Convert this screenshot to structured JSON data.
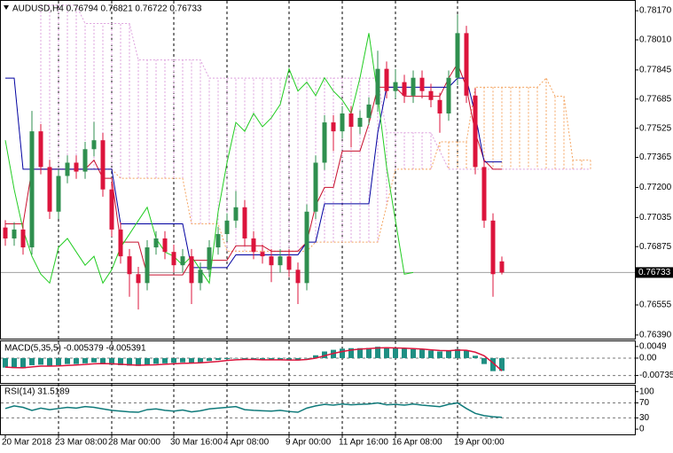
{
  "chart_data": [
    {
      "type": "candlestick",
      "title": "AUDUSD,H4  0.76794 0.76821 0.76722 0.76733",
      "categories": [
        "20 Mar 2018",
        null,
        null,
        null,
        null,
        null,
        "23 Mar 08:00",
        null,
        null,
        null,
        null,
        null,
        "28 Mar 00:00",
        null,
        null,
        null,
        null,
        null,
        null,
        "30 Mar 16:00",
        null,
        null,
        null,
        null,
        null,
        "4 Apr 08:00",
        null,
        null,
        null,
        null,
        null,
        null,
        "9 Apr 00:00",
        null,
        null,
        null,
        null,
        null,
        "11 Apr 16:00",
        null,
        null,
        null,
        null,
        null,
        "16 Apr 08:00",
        null,
        null,
        null,
        null,
        null,
        null,
        "19 Apr 00:00",
        null,
        null,
        null,
        null,
        null,
        null,
        null,
        null,
        null,
        null,
        null,
        null,
        null,
        null,
        null
      ],
      "open": [
        0.7698,
        0.7692,
        0.76969,
        0.76871,
        0.77508,
        0.77312,
        0.77067,
        0.77263,
        0.77336,
        0.77287,
        0.7741,
        0.77459,
        0.77189,
        0.76969,
        0.76822,
        0.76724,
        0.76675,
        0.76871,
        0.7692,
        0.76846,
        0.76773,
        0.76822,
        0.76675,
        0.76748,
        0.76871,
        0.76944,
        0.77018,
        0.77091,
        0.7692,
        0.76846,
        0.76822,
        0.76773,
        0.76822,
        0.76748,
        0.76675,
        0.77067,
        0.77336,
        0.77557,
        0.77508,
        0.77606,
        0.77533,
        0.77582,
        0.77655,
        0.77851,
        0.77729,
        0.77778,
        0.77704,
        0.77802,
        0.77729,
        0.7768,
        0.77606,
        0.77802,
        0.78047,
        0.77704,
        0.77312,
        0.77018,
        0.76794,
        null,
        null,
        null,
        null,
        null,
        null,
        null,
        null,
        null,
        null
      ],
      "high": [
        0.7702,
        0.77009,
        0.77009,
        0.7762,
        0.77548,
        0.77352,
        0.77303,
        0.77376,
        0.77376,
        0.7745,
        0.7756,
        0.77499,
        0.77229,
        0.77009,
        0.76862,
        0.76764,
        0.76911,
        0.7696,
        0.7696,
        0.76886,
        0.76862,
        0.76862,
        0.76788,
        0.76911,
        0.76984,
        0.77058,
        0.7718,
        0.77131,
        0.7696,
        0.76886,
        0.76862,
        0.76862,
        0.76862,
        0.76788,
        0.77107,
        0.77376,
        0.77597,
        0.77597,
        0.77646,
        0.77646,
        0.77622,
        0.77695,
        0.7795,
        0.77891,
        0.7785,
        0.77818,
        0.77842,
        0.77842,
        0.77769,
        0.7772,
        0.77842,
        0.7815,
        0.78087,
        0.77744,
        0.77352,
        0.77058,
        0.76821,
        null,
        null,
        null,
        null,
        null,
        null,
        null,
        null,
        null,
        null
      ],
      "low": [
        0.7688,
        0.7688,
        0.76831,
        0.76831,
        0.77272,
        0.77027,
        0.77027,
        0.77223,
        0.77247,
        0.77247,
        0.7737,
        0.77149,
        0.76929,
        0.76782,
        0.766,
        0.7653,
        0.76635,
        0.76831,
        0.76806,
        0.76733,
        0.76733,
        0.7656,
        0.76635,
        0.76708,
        0.76831,
        0.76904,
        0.76978,
        0.7688,
        0.76806,
        0.76782,
        0.7668,
        0.76733,
        0.76708,
        0.7656,
        0.76635,
        0.77027,
        0.77296,
        0.774,
        0.77468,
        0.7742,
        0.77493,
        0.77542,
        0.77615,
        0.77689,
        0.77689,
        0.77664,
        0.77664,
        0.77689,
        0.7764,
        0.775,
        0.77566,
        0.77762,
        0.77664,
        0.77272,
        0.76978,
        0.766,
        0.76722,
        null,
        null,
        null,
        null,
        null,
        null,
        null,
        null,
        null,
        null
      ],
      "close": [
        0.7692,
        0.76969,
        0.76871,
        0.77508,
        0.77312,
        0.77067,
        0.77263,
        0.77336,
        0.77287,
        0.7741,
        0.77459,
        0.77189,
        0.76969,
        0.76822,
        0.76724,
        0.76675,
        0.76871,
        0.7692,
        0.76846,
        0.76773,
        0.76822,
        0.76675,
        0.76748,
        0.76871,
        0.76944,
        0.77018,
        0.77091,
        0.7692,
        0.76846,
        0.76822,
        0.76773,
        0.76822,
        0.76748,
        0.76675,
        0.77067,
        0.77336,
        0.77557,
        0.77508,
        0.77606,
        0.77533,
        0.77582,
        0.77655,
        0.77851,
        0.77729,
        0.77778,
        0.77704,
        0.77802,
        0.77729,
        0.7768,
        0.77606,
        0.77802,
        0.78047,
        0.77704,
        0.77312,
        0.77018,
        0.76724,
        0.76733,
        null,
        null,
        null,
        null,
        null,
        null,
        null,
        null,
        null,
        null
      ],
      "up_color": "#2f8f4f",
      "down_color": "#dc143c",
      "lines": [
        {
          "color": "#c8102e",
          "values": [
            0.77,
            0.77,
            0.77,
            0.773,
            0.773,
            0.773,
            0.773,
            0.773,
            0.773,
            0.773,
            0.7735,
            0.7725,
            0.7725,
            0.769,
            0.769,
            0.769,
            0.7672,
            0.7672,
            0.7672,
            0.7672,
            0.7672,
            0.768,
            0.768,
            0.768,
            0.768,
            0.768,
            0.7688,
            0.7688,
            0.7688,
            0.7688,
            0.7685,
            0.7685,
            0.7685,
            0.7685,
            0.769,
            0.771,
            0.772,
            0.772,
            0.774,
            0.774,
            0.774,
            0.7755,
            0.7775,
            0.7775,
            0.7775,
            0.777,
            0.777,
            0.777,
            0.777,
            0.777,
            0.778,
            0.7788,
            0.7775,
            0.775,
            0.7735,
            0.773,
            0.773,
            null,
            null,
            null,
            null,
            null,
            null,
            null,
            null,
            null,
            null
          ]
        },
        {
          "color": "#0000a0",
          "values": [
            0.778,
            0.778,
            0.773,
            0.773,
            0.773,
            0.773,
            0.773,
            0.773,
            0.773,
            0.773,
            0.773,
            0.773,
            0.773,
            0.77,
            0.77,
            0.77,
            0.77,
            0.77,
            0.77,
            0.77,
            0.77,
            0.7676,
            0.7676,
            0.7676,
            0.7676,
            0.7676,
            0.7683,
            0.7683,
            0.7683,
            0.7683,
            0.7683,
            0.7683,
            0.7683,
            0.7683,
            0.769,
            0.769,
            0.7711,
            0.7711,
            0.7711,
            0.7711,
            0.7711,
            0.7711,
            0.775,
            0.7775,
            0.7775,
            0.7775,
            0.7775,
            0.7775,
            0.7775,
            0.7775,
            0.7775,
            0.778,
            0.778,
            0.776,
            0.7734,
            0.7734,
            0.7734,
            null,
            null,
            null,
            null,
            null,
            null,
            null,
            null,
            null,
            null
          ]
        },
        {
          "color": "#22cc22",
          "values": [
            0.77459,
            0.77189,
            0.76969,
            0.76822,
            0.76724,
            0.76675,
            0.76871,
            0.7692,
            0.76846,
            0.76773,
            0.76822,
            0.76675,
            0.76748,
            0.76871,
            0.76944,
            0.77018,
            0.77091,
            0.7692,
            0.76846,
            0.76822,
            0.76773,
            0.76822,
            0.76748,
            0.76675,
            0.77067,
            0.77336,
            0.77557,
            0.77508,
            0.77606,
            0.77533,
            0.77582,
            0.77655,
            0.77851,
            0.77729,
            0.77778,
            0.77704,
            0.77802,
            0.77729,
            0.7768,
            0.77606,
            0.77802,
            0.78047,
            0.77704,
            0.77312,
            0.77018,
            0.76724,
            0.76733,
            null,
            null,
            null,
            null,
            null,
            null,
            null,
            null,
            null,
            null,
            null,
            null,
            null,
            null,
            null,
            null,
            null,
            null,
            null,
            null
          ]
        }
      ],
      "cloud": {
        "color_a": "#f4a460",
        "color_b": "#dda0dd",
        "span_a": [
          null,
          null,
          null,
          null,
          0.773,
          0.773,
          0.773,
          0.773,
          0.773,
          0.773,
          0.773,
          0.773,
          0.773,
          0.7725,
          0.7725,
          0.7725,
          0.7725,
          0.7725,
          0.7725,
          0.7725,
          0.7725,
          0.77,
          0.77,
          0.77,
          0.77,
          0.7685,
          0.7685,
          0.7685,
          0.7685,
          0.7685,
          0.7685,
          0.7685,
          0.7685,
          0.7685,
          0.7685,
          0.769,
          0.769,
          0.769,
          0.769,
          0.769,
          0.769,
          0.769,
          0.769,
          0.771,
          0.773,
          0.773,
          0.773,
          0.773,
          0.773,
          0.7745,
          0.7745,
          0.7745,
          0.7745,
          0.7775,
          0.7775,
          0.7775,
          0.7775,
          0.7775,
          0.7775,
          0.7775,
          0.7775,
          0.778,
          0.777,
          0.777,
          0.7735,
          0.7735,
          0.7735
        ],
        "span_b": [
          null,
          null,
          null,
          null,
          0.782,
          0.782,
          0.782,
          0.782,
          0.782,
          0.781,
          0.781,
          0.781,
          0.781,
          0.781,
          0.781,
          0.779,
          0.779,
          0.779,
          0.779,
          0.779,
          0.779,
          0.779,
          0.779,
          0.778,
          0.778,
          0.778,
          0.778,
          0.778,
          0.778,
          0.778,
          0.778,
          0.778,
          0.778,
          0.778,
          0.778,
          0.778,
          0.778,
          0.778,
          0.778,
          0.778,
          0.778,
          0.778,
          0.778,
          0.775,
          0.775,
          0.775,
          0.775,
          0.775,
          0.775,
          0.774,
          0.773,
          0.773,
          0.773,
          0.773,
          0.773,
          0.773,
          0.773,
          0.773,
          0.773,
          0.773,
          0.773,
          0.773,
          0.773,
          0.773,
          0.773,
          0.773,
          0.773
        ]
      },
      "last_price": 0.76733,
      "price_line_color": "#a0a0a0",
      "ylim": [
        0.7637,
        0.78224
      ],
      "yticks": [
        {
          "value": 0.7817,
          "label": "0.78170"
        },
        {
          "value": 0.7801,
          "label": "0.78010"
        },
        0.77845,
        0.77685,
        0.77525,
        0.77365,
        {
          "value": 0.772,
          "label": "0.77200"
        },
        0.77035,
        0.76875,
        0.76555,
        {
          "value": 0.7639,
          "label": "0.76390"
        }
      ]
    },
    {
      "type": "bar",
      "title": "MACD(5,35,5) -0.005379 -0.005391",
      "color": "#1f8f83",
      "values": [
        -0.004,
        -0.0042,
        -0.0043,
        -0.003,
        -0.0028,
        -0.0035,
        -0.003,
        -0.0025,
        -0.0025,
        -0.0022,
        -0.0018,
        -0.0022,
        -0.0028,
        -0.003,
        -0.0032,
        -0.0033,
        -0.0028,
        -0.0024,
        -0.0022,
        -0.002,
        -0.0018,
        -0.002,
        -0.0018,
        -0.0012,
        -0.0008,
        -0.0004,
        -0.0002,
        -0.0004,
        -0.0006,
        -0.0008,
        -0.0008,
        -0.0007,
        -0.0008,
        -0.001,
        -0.0002,
        0.0012,
        0.0028,
        0.0035,
        0.004,
        0.0042,
        0.0042,
        0.0043,
        0.0048,
        0.0045,
        0.0042,
        0.004,
        0.0038,
        0.0036,
        0.0032,
        0.0028,
        0.003,
        0.0038,
        0.0032,
        0.001,
        -0.0025,
        -0.0055,
        -0.005379
      ],
      "signal": {
        "color": "#dc143c",
        "values": [
          -0.0038,
          -0.004,
          -0.0041,
          -0.0037,
          -0.0034,
          -0.0034,
          -0.0033,
          -0.0031,
          -0.0029,
          -0.0027,
          -0.0024,
          -0.0023,
          -0.0024,
          -0.0026,
          -0.0028,
          -0.003,
          -0.0029,
          -0.0028,
          -0.0026,
          -0.0024,
          -0.0022,
          -0.0021,
          -0.002,
          -0.0017,
          -0.0014,
          -0.001,
          -0.0007,
          -0.0006,
          -0.0006,
          -0.0007,
          -0.0007,
          -0.0007,
          -0.0008,
          -0.0008,
          -0.0006,
          0,
          0.001,
          0.002,
          0.0028,
          0.0034,
          0.0038,
          0.004,
          0.0043,
          0.0044,
          0.0043,
          0.0042,
          0.004,
          0.0038,
          0.0035,
          0.0032,
          0.0031,
          0.0034,
          0.0033,
          0.0025,
          0.001,
          -0.002,
          -0.005391
        ]
      },
      "levels": [
        0,
        -0.007353
      ],
      "ylim": [
        -0.0105,
        0.0071
      ],
      "yticks": [
        0.0049,
        {
          "value": 0,
          "label": "0.00"
        },
        -0.007353
      ]
    },
    {
      "type": "line",
      "title": "RSI(14) 31.5189",
      "color": "#0f7a7a",
      "values": [
        55,
        62,
        58,
        50,
        56,
        52,
        55,
        58,
        56,
        60,
        58,
        54,
        50,
        48,
        46,
        45,
        52,
        54,
        50,
        48,
        51,
        46,
        49,
        54,
        56,
        58,
        60,
        52,
        50,
        49,
        48,
        50,
        47,
        45,
        56,
        62,
        66,
        64,
        67,
        65,
        66,
        67,
        70,
        65,
        66,
        64,
        67,
        64,
        62,
        60,
        66,
        70,
        55,
        42,
        36,
        33,
        31.5189
      ],
      "levels": [
        70,
        30
      ],
      "ylim": [
        -14,
        116
      ],
      "yticks": [
        100,
        70,
        30,
        0
      ]
    }
  ]
}
